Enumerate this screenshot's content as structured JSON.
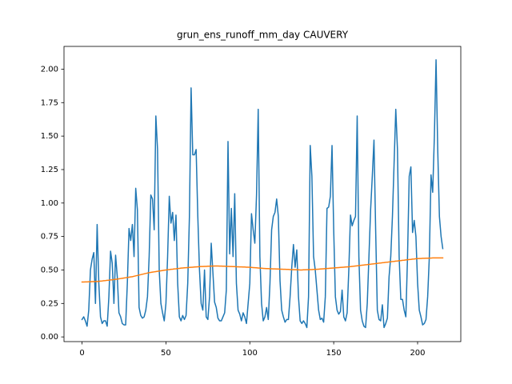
{
  "chart_data": {
    "type": "line",
    "title": "grun_ens_runoff_mm_day CAUVERY",
    "x": [
      0,
      1,
      2,
      3,
      4,
      5,
      6,
      7,
      8,
      9,
      10,
      11,
      12,
      13,
      14,
      15,
      16,
      17,
      18,
      19,
      20,
      21,
      22,
      23,
      24,
      25,
      26,
      27,
      28,
      29,
      30,
      31,
      32,
      33,
      34,
      35,
      36,
      37,
      38,
      39,
      40,
      41,
      42,
      43,
      44,
      45,
      46,
      47,
      48,
      49,
      50,
      51,
      52,
      53,
      54,
      55,
      56,
      57,
      58,
      59,
      60,
      61,
      62,
      63,
      64,
      65,
      66,
      67,
      68,
      69,
      70,
      71,
      72,
      73,
      74,
      75,
      76,
      77,
      78,
      79,
      80,
      81,
      82,
      83,
      84,
      85,
      86,
      87,
      88,
      89,
      90,
      91,
      92,
      93,
      94,
      95,
      96,
      97,
      98,
      99,
      100,
      101,
      102,
      103,
      104,
      105,
      106,
      107,
      108,
      109,
      110,
      111,
      112,
      113,
      114,
      115,
      116,
      117,
      118,
      119,
      120,
      121,
      122,
      123,
      124,
      125,
      126,
      127,
      128,
      129,
      130,
      131,
      132,
      133,
      134,
      135,
      136,
      137,
      138,
      139,
      140,
      141,
      142,
      143,
      144,
      145,
      146,
      147,
      148,
      149,
      150,
      151,
      152,
      153,
      154,
      155,
      156,
      157,
      158,
      159,
      160,
      161,
      162,
      163,
      164,
      165,
      166,
      167,
      168,
      169,
      170,
      171,
      172,
      173,
      174,
      175,
      176,
      177,
      178,
      179,
      180,
      181,
      182,
      183,
      184,
      185,
      186,
      187,
      188,
      189,
      190,
      191,
      192,
      193,
      194,
      195,
      196,
      197,
      198,
      199,
      200,
      201,
      202,
      203,
      204,
      205,
      206,
      207,
      208,
      209,
      210,
      211,
      212,
      213,
      214,
      215
    ],
    "series": [
      {
        "color": "#1f77b4",
        "values": [
          0.13,
          0.15,
          0.12,
          0.08,
          0.2,
          0.5,
          0.58,
          0.63,
          0.25,
          0.84,
          0.4,
          0.15,
          0.1,
          0.12,
          0.12,
          0.08,
          0.3,
          0.64,
          0.55,
          0.25,
          0.61,
          0.45,
          0.18,
          0.15,
          0.1,
          0.09,
          0.09,
          0.4,
          0.81,
          0.72,
          0.84,
          0.6,
          1.11,
          0.95,
          0.22,
          0.16,
          0.14,
          0.15,
          0.2,
          0.3,
          0.6,
          1.06,
          1.03,
          0.8,
          1.65,
          1.4,
          0.5,
          0.25,
          0.18,
          0.12,
          0.25,
          0.6,
          1.05,
          0.85,
          0.93,
          0.72,
          0.91,
          0.4,
          0.15,
          0.12,
          0.16,
          0.13,
          0.16,
          0.4,
          0.9,
          1.86,
          1.36,
          1.36,
          1.4,
          0.9,
          0.5,
          0.25,
          0.2,
          0.5,
          0.15,
          0.13,
          0.3,
          0.7,
          0.48,
          0.26,
          0.22,
          0.14,
          0.12,
          0.12,
          0.15,
          0.18,
          0.35,
          1.46,
          0.62,
          0.96,
          0.6,
          1.07,
          0.4,
          0.2,
          0.17,
          0.12,
          0.18,
          0.15,
          0.1,
          0.25,
          0.4,
          0.92,
          0.8,
          0.7,
          1.06,
          1.7,
          0.6,
          0.25,
          0.12,
          0.15,
          0.22,
          0.13,
          0.4,
          0.8,
          0.9,
          0.93,
          1.03,
          0.9,
          0.42,
          0.2,
          0.15,
          0.11,
          0.13,
          0.13,
          0.3,
          0.52,
          0.69,
          0.52,
          0.65,
          0.3,
          0.12,
          0.1,
          0.12,
          0.1,
          0.07,
          0.3,
          1.43,
          1.2,
          0.6,
          0.5,
          0.35,
          0.2,
          0.13,
          0.14,
          0.11,
          0.3,
          0.96,
          0.97,
          1.05,
          1.43,
          0.8,
          0.3,
          0.2,
          0.17,
          0.19,
          0.35,
          0.15,
          0.12,
          0.18,
          0.5,
          0.91,
          0.83,
          0.87,
          0.9,
          1.65,
          0.6,
          0.2,
          0.12,
          0.08,
          0.07,
          0.25,
          0.6,
          0.95,
          1.2,
          1.47,
          0.8,
          0.2,
          0.13,
          0.12,
          0.24,
          0.07,
          0.1,
          0.14,
          0.45,
          0.6,
          0.9,
          1.3,
          1.7,
          1.4,
          0.6,
          0.28,
          0.28,
          0.2,
          0.15,
          0.6,
          1.2,
          1.27,
          0.78,
          0.87,
          0.75,
          0.4,
          0.2,
          0.15,
          0.09,
          0.1,
          0.13,
          0.3,
          0.6,
          1.21,
          1.08,
          1.5,
          2.07,
          1.4,
          0.9,
          0.75,
          0.66
        ]
      },
      {
        "color": "#ff7f0e",
        "values": [
          0.41,
          0.41,
          0.411,
          0.411,
          0.412,
          0.412,
          0.413,
          0.413,
          0.414,
          0.414,
          0.415,
          0.417,
          0.418,
          0.42,
          0.421,
          0.423,
          0.424,
          0.426,
          0.427,
          0.429,
          0.43,
          0.432,
          0.434,
          0.436,
          0.438,
          0.44,
          0.442,
          0.444,
          0.446,
          0.448,
          0.45,
          0.453,
          0.456,
          0.459,
          0.462,
          0.465,
          0.468,
          0.471,
          0.474,
          0.477,
          0.48,
          0.482,
          0.484,
          0.486,
          0.488,
          0.49,
          0.492,
          0.494,
          0.496,
          0.498,
          0.5,
          0.502,
          0.503,
          0.505,
          0.506,
          0.508,
          0.509,
          0.511,
          0.512,
          0.514,
          0.515,
          0.516,
          0.517,
          0.518,
          0.519,
          0.52,
          0.521,
          0.522,
          0.523,
          0.524,
          0.525,
          0.526,
          0.526,
          0.527,
          0.527,
          0.528,
          0.528,
          0.529,
          0.529,
          0.53,
          0.53,
          0.53,
          0.529,
          0.529,
          0.528,
          0.528,
          0.527,
          0.527,
          0.526,
          0.526,
          0.525,
          0.525,
          0.524,
          0.524,
          0.523,
          0.523,
          0.522,
          0.522,
          0.521,
          0.521,
          0.52,
          0.519,
          0.518,
          0.517,
          0.516,
          0.515,
          0.514,
          0.513,
          0.512,
          0.511,
          0.51,
          0.51,
          0.509,
          0.509,
          0.508,
          0.508,
          0.507,
          0.507,
          0.506,
          0.506,
          0.505,
          0.505,
          0.504,
          0.504,
          0.503,
          0.503,
          0.502,
          0.502,
          0.501,
          0.501,
          0.5,
          0.5,
          0.501,
          0.501,
          0.502,
          0.502,
          0.503,
          0.503,
          0.504,
          0.504,
          0.505,
          0.506,
          0.507,
          0.508,
          0.509,
          0.51,
          0.511,
          0.512,
          0.513,
          0.514,
          0.515,
          0.516,
          0.517,
          0.518,
          0.519,
          0.52,
          0.521,
          0.522,
          0.523,
          0.524,
          0.525,
          0.527,
          0.528,
          0.53,
          0.531,
          0.533,
          0.534,
          0.536,
          0.537,
          0.539,
          0.54,
          0.542,
          0.543,
          0.545,
          0.546,
          0.548,
          0.549,
          0.551,
          0.552,
          0.554,
          0.555,
          0.557,
          0.558,
          0.56,
          0.561,
          0.563,
          0.564,
          0.566,
          0.567,
          0.569,
          0.57,
          0.572,
          0.573,
          0.575,
          0.576,
          0.578,
          0.579,
          0.581,
          0.582,
          0.584,
          0.585,
          0.586,
          0.586,
          0.587,
          0.587,
          0.588,
          0.588,
          0.589,
          0.589,
          0.59,
          0.59,
          0.59,
          0.59,
          0.59,
          0.59,
          0.59
        ]
      }
    ],
    "xlim": [
      -10.75,
      225.75
    ],
    "xticks": [
      0,
      50,
      100,
      150,
      200
    ],
    "ylim": [
      -0.035,
      2.17
    ],
    "yticks": [
      {
        "value": 0,
        "label": "0.00"
      },
      {
        "value": 0.25,
        "label": "0.25"
      },
      {
        "value": 0.5,
        "label": "0.50"
      },
      {
        "value": 0.75,
        "label": "0.75"
      },
      {
        "value": 1,
        "label": "1.00"
      },
      {
        "value": 1.25,
        "label": "1.25"
      },
      {
        "value": 1.5,
        "label": "1.50"
      },
      {
        "value": 1.75,
        "label": "1.75"
      },
      {
        "value": 2,
        "label": "2.00"
      }
    ],
    "grid": false
  }
}
